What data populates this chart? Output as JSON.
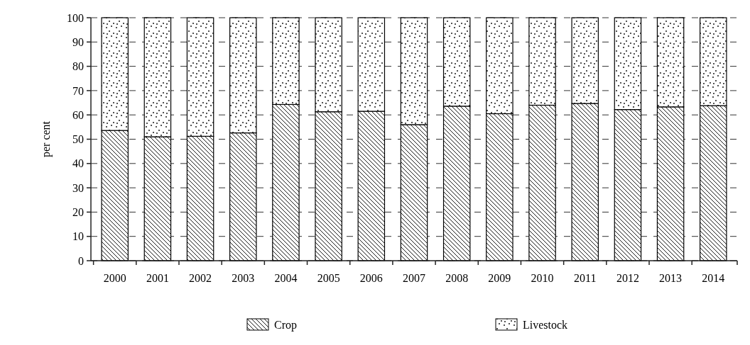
{
  "chart_data": {
    "type": "bar",
    "stacked": true,
    "ylabel": "per cent",
    "categories": [
      "2000",
      "2001",
      "2002",
      "2003",
      "2004",
      "2005",
      "2006",
      "2007",
      "2008",
      "2009",
      "2010",
      "2011",
      "2012",
      "2013",
      "2014"
    ],
    "series": [
      {
        "name": "Crop",
        "color": "#000000",
        "values": [
          53.6,
          51.0,
          51.2,
          52.6,
          64.3,
          61.3,
          61.5,
          56.0,
          63.6,
          60.5,
          64.0,
          64.7,
          62.2,
          63.3,
          63.8
        ]
      },
      {
        "name": "Livestock",
        "color": "#000000",
        "values": [
          46.4,
          49.0,
          48.8,
          47.4,
          35.7,
          38.7,
          38.5,
          44.0,
          36.4,
          39.5,
          36.0,
          35.3,
          37.8,
          36.7,
          36.2
        ]
      }
    ],
    "ylim": [
      0,
      100
    ],
    "yticks": [
      0,
      10,
      20,
      30,
      40,
      50,
      60,
      70,
      80,
      90,
      100
    ],
    "grid": "y",
    "legend": "bottom"
  }
}
